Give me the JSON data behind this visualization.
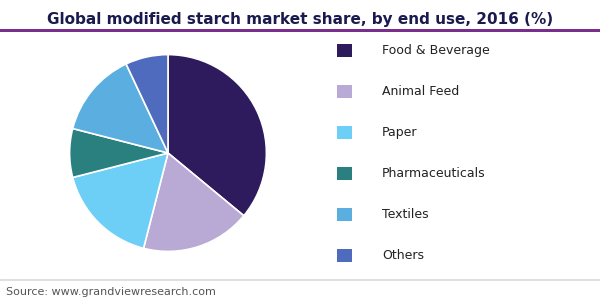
{
  "title": "Global modified starch market share, by end use, 2016 (%)",
  "source": "Source: www.grandviewresearch.com",
  "labels": [
    "Food & Beverage",
    "Animal Feed",
    "Paper",
    "Pharmaceuticals",
    "Textiles",
    "Others"
  ],
  "values": [
    36,
    18,
    17,
    8,
    14,
    7
  ],
  "colors": [
    "#2d1b5e",
    "#b8aad4",
    "#6dcff6",
    "#2a7f7f",
    "#5baee0",
    "#4f6bbd"
  ],
  "startangle": 90,
  "legend_fontsize": 9,
  "title_fontsize": 11,
  "source_fontsize": 8,
  "figsize": [
    6.0,
    3.0
  ],
  "dpi": 100,
  "header_line_color": "#7b2d8b",
  "title_color": "#1a1a4e"
}
